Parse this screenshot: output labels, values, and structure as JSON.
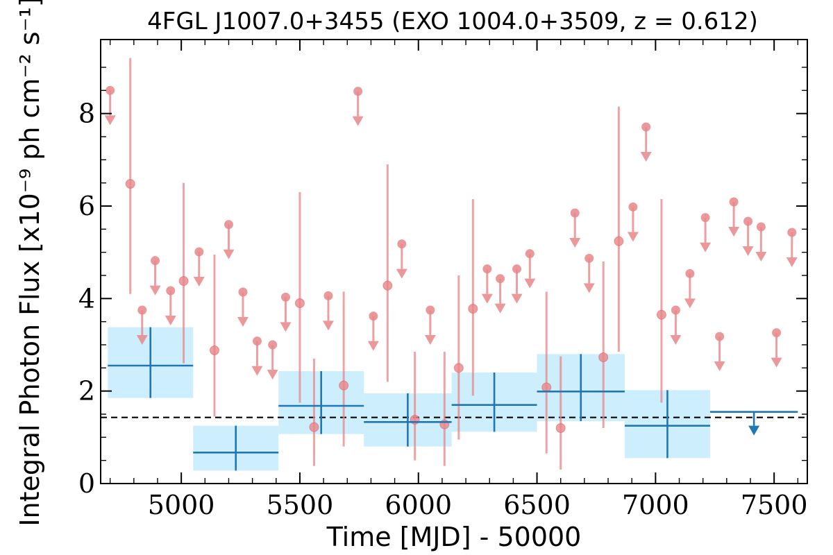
{
  "chart_data": {
    "type": "scatter",
    "title": "4FGL J1007.0+3455 (EXO 1004.0+3509, z = 0.612)",
    "xlabel": "Time [MJD] - 50000",
    "ylabel": "Integral Photon Flux [x10⁻⁹ ph cm⁻² s⁻¹]",
    "xlim": [
      4660,
      7640
    ],
    "ylim": [
      0,
      9.6
    ],
    "xticks": [
      5000,
      5500,
      6000,
      6500,
      7000,
      7500
    ],
    "yticks": [
      0,
      2,
      4,
      6,
      8
    ],
    "grid": false,
    "mean_flux": 1.43,
    "colors": {
      "short_bins": "#e8868a",
      "long_bins": "#1f77b4",
      "long_band": "#cdeefc",
      "mean_line": "#000000"
    },
    "short_bin_detections": [
      {
        "x": 4785,
        "y": 6.48,
        "lo": 4.1,
        "hi": 9.2
      },
      {
        "x": 5010,
        "y": 4.38,
        "lo": 2.6,
        "hi": 6.5
      },
      {
        "x": 5140,
        "y": 2.88,
        "lo": 1.45,
        "hi": 4.95
      },
      {
        "x": 5500,
        "y": 3.9,
        "lo": 1.75,
        "hi": 6.3
      },
      {
        "x": 5560,
        "y": 1.22,
        "lo": 0.38,
        "hi": 2.7
      },
      {
        "x": 5685,
        "y": 2.12,
        "lo": 0.8,
        "hi": 4.15
      },
      {
        "x": 5870,
        "y": 4.28,
        "lo": 2.2,
        "hi": 6.9
      },
      {
        "x": 5985,
        "y": 1.38,
        "lo": 0.5,
        "hi": 2.85
      },
      {
        "x": 6110,
        "y": 1.28,
        "lo": 0.38,
        "hi": 2.85
      },
      {
        "x": 6170,
        "y": 2.5,
        "lo": 0.95,
        "hi": 4.5
      },
      {
        "x": 6230,
        "y": 3.78,
        "lo": 1.9,
        "hi": 6.15
      },
      {
        "x": 6540,
        "y": 2.08,
        "lo": 0.65,
        "hi": 4.15
      },
      {
        "x": 6600,
        "y": 1.2,
        "lo": 0.3,
        "hi": 2.75
      },
      {
        "x": 6780,
        "y": 2.73,
        "lo": 1.2,
        "hi": 4.8
      },
      {
        "x": 6845,
        "y": 5.24,
        "lo": 2.85,
        "hi": 8.15
      },
      {
        "x": 7025,
        "y": 3.65,
        "lo": 1.75,
        "hi": 6.15
      }
    ],
    "short_bin_upper_limits": [
      {
        "x": 4700,
        "y": 8.5
      },
      {
        "x": 4835,
        "y": 3.75
      },
      {
        "x": 4890,
        "y": 4.82
      },
      {
        "x": 4955,
        "y": 4.17
      },
      {
        "x": 5075,
        "y": 5.01
      },
      {
        "x": 5200,
        "y": 5.6
      },
      {
        "x": 5260,
        "y": 4.14
      },
      {
        "x": 5320,
        "y": 3.08
      },
      {
        "x": 5385,
        "y": 3.0
      },
      {
        "x": 5440,
        "y": 4.03
      },
      {
        "x": 5620,
        "y": 4.06
      },
      {
        "x": 5745,
        "y": 8.48
      },
      {
        "x": 5810,
        "y": 3.62
      },
      {
        "x": 5930,
        "y": 5.18
      },
      {
        "x": 6050,
        "y": 3.75
      },
      {
        "x": 6290,
        "y": 4.64
      },
      {
        "x": 6345,
        "y": 4.43
      },
      {
        "x": 6415,
        "y": 4.64
      },
      {
        "x": 6470,
        "y": 4.97
      },
      {
        "x": 6660,
        "y": 5.85
      },
      {
        "x": 6720,
        "y": 4.87
      },
      {
        "x": 6905,
        "y": 5.98
      },
      {
        "x": 6960,
        "y": 7.71
      },
      {
        "x": 7085,
        "y": 3.75
      },
      {
        "x": 7145,
        "y": 4.54
      },
      {
        "x": 7210,
        "y": 5.75
      },
      {
        "x": 7270,
        "y": 3.18
      },
      {
        "x": 7330,
        "y": 6.09
      },
      {
        "x": 7390,
        "y": 5.67
      },
      {
        "x": 7445,
        "y": 5.55
      },
      {
        "x": 7510,
        "y": 3.26
      },
      {
        "x": 7575,
        "y": 5.43
      }
    ],
    "long_bin_detections": [
      {
        "x0": 4690,
        "x1": 5050,
        "xc": 4870,
        "y": 2.55,
        "lo": 1.85,
        "hi": 3.38
      },
      {
        "x0": 5050,
        "x1": 5410,
        "xc": 5230,
        "y": 0.67,
        "lo": 0.28,
        "hi": 1.25
      },
      {
        "x0": 5410,
        "x1": 5770,
        "xc": 5590,
        "y": 1.68,
        "lo": 1.07,
        "hi": 2.43
      },
      {
        "x0": 5770,
        "x1": 6140,
        "xc": 5955,
        "y": 1.33,
        "lo": 0.8,
        "hi": 1.95
      },
      {
        "x0": 6140,
        "x1": 6500,
        "xc": 6320,
        "y": 1.7,
        "lo": 1.12,
        "hi": 2.4
      },
      {
        "x0": 6500,
        "x1": 6870,
        "xc": 6685,
        "y": 1.99,
        "lo": 1.35,
        "hi": 2.8
      },
      {
        "x0": 6870,
        "x1": 7230,
        "xc": 7050,
        "y": 1.25,
        "lo": 0.55,
        "hi": 2.02
      }
    ],
    "long_bin_upper_limits": [
      {
        "x0": 7230,
        "x1": 7600,
        "xc": 7415,
        "y": 1.55
      }
    ]
  }
}
